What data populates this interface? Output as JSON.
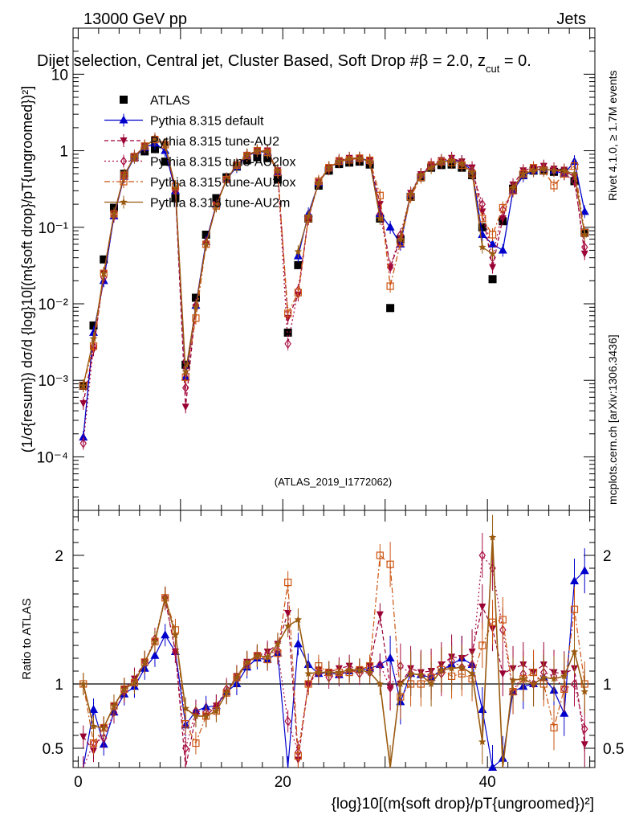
{
  "header": {
    "left": "13000 GeV pp",
    "right": "Jets",
    "title": "Dijet selection, Central jet, Cluster Based, Soft Drop #β = 2.0, z",
    "title_sub": "cut",
    "title_tail": " = 0.",
    "watermark": "(ATLAS_2019_I1772062)",
    "side_top": "Rivet 4.1.0, ≥ 1.7M events",
    "side_bottom": "mcplots.cern.ch [arXiv:1306.3436]"
  },
  "colors": {
    "atlas": "#000000",
    "default": "#0000cc",
    "au2": "#990033",
    "au2lox": "#aa1144",
    "au2lox_sq": "#cc5511",
    "au2m": "#9a5a10"
  },
  "chart_data": [
    {
      "type": "line",
      "panel": "main",
      "ylabel": "(1/σ{resum}) dσ/d {log}10[(m{soft drop}/pT{ungroomed})²]",
      "yscale": "log",
      "xlim": [
        -0.5,
        50.5
      ],
      "ylim": [
        2e-05,
        40
      ],
      "y_ticks": [
        {
          "value": 0.0001,
          "label": "10⁻⁴"
        },
        {
          "value": 0.001,
          "label": "10⁻³"
        },
        {
          "value": 0.01,
          "label": "10⁻²"
        },
        {
          "value": 0.1,
          "label": "10⁻¹"
        },
        {
          "value": 1,
          "label": "1"
        },
        {
          "value": 10,
          "label": "10"
        }
      ],
      "x": [
        0.5,
        1.5,
        2.5,
        3.5,
        4.5,
        5.5,
        6.5,
        7.5,
        8.5,
        9.5,
        10.5,
        11.5,
        12.5,
        13.5,
        14.5,
        15.5,
        16.5,
        17.5,
        18.5,
        19.5,
        20.5,
        21.5,
        22.5,
        23.5,
        24.5,
        25.5,
        26.5,
        27.5,
        28.5,
        29.5,
        30.5,
        31.5,
        32.5,
        33.5,
        34.5,
        35.5,
        36.5,
        37.5,
        38.5,
        39.5,
        40.5,
        41.5,
        42.5,
        43.5,
        44.5,
        45.5,
        46.5,
        47.5,
        48.5,
        49.5
      ],
      "series": [
        {
          "name": "ATLAS",
          "marker": "square",
          "color": "#000000",
          "values": [
            0.00085,
            0.0052,
            0.038,
            0.18,
            0.5,
            0.82,
            0.98,
            1.05,
            0.72,
            0.24,
            0.0016,
            0.012,
            0.08,
            0.24,
            0.45,
            0.62,
            0.75,
            0.82,
            0.8,
            0.42,
            0.0042,
            0.032,
            0.13,
            0.35,
            0.55,
            0.67,
            0.7,
            0.72,
            0.66,
            0.13,
            0.0088,
            0.07,
            0.25,
            0.45,
            0.6,
            0.65,
            0.66,
            0.6,
            0.48,
            0.1,
            0.021,
            0.12,
            0.32,
            0.48,
            0.55,
            0.55,
            0.53,
            0.52,
            0.4,
            0.085
          ]
        },
        {
          "name": "Pythia 8.315 default",
          "marker": "triangle-up",
          "color": "#0000cc",
          "values": [
            0.00018,
            0.0042,
            0.02,
            0.14,
            0.46,
            0.82,
            1.1,
            1.25,
            1.0,
            0.3,
            0.0011,
            0.0095,
            0.065,
            0.2,
            0.42,
            0.62,
            0.85,
            0.98,
            0.95,
            0.52,
            0.0,
            0.042,
            0.15,
            0.38,
            0.6,
            0.72,
            0.78,
            0.8,
            0.74,
            0.15,
            0.1,
            0.06,
            0.27,
            0.48,
            0.63,
            0.72,
            0.76,
            0.72,
            0.55,
            0.08,
            0.06,
            0.05,
            0.3,
            0.47,
            0.55,
            0.58,
            0.55,
            0.5,
            0.72,
            0.16
          ]
        },
        {
          "name": "Pythia 8.315 tune-AU2",
          "marker": "triangle-down",
          "color": "#990033",
          "values": [
            0.0005,
            0.0025,
            0.025,
            0.15,
            0.48,
            0.85,
            1.15,
            1.4,
            1.2,
            0.3,
            0.00045,
            0.009,
            0.06,
            0.2,
            0.42,
            0.66,
            0.88,
            1.0,
            1.0,
            0.55,
            0.0065,
            0.013,
            0.13,
            0.39,
            0.6,
            0.75,
            0.8,
            0.8,
            0.75,
            0.2,
            0.03,
            0.07,
            0.28,
            0.49,
            0.66,
            0.75,
            0.8,
            0.72,
            0.6,
            0.16,
            0.03,
            0.13,
            0.36,
            0.55,
            0.6,
            0.63,
            0.58,
            0.56,
            0.45,
            0.045
          ]
        },
        {
          "name": "Pythia 8.315 tune-AU2lox",
          "marker": "diamond",
          "color": "#aa1144",
          "values": [
            0.00015,
            0.0028,
            0.022,
            0.14,
            0.47,
            0.84,
            1.15,
            1.42,
            1.2,
            0.3,
            0.0008,
            0.0095,
            0.062,
            0.2,
            0.43,
            0.65,
            0.87,
            1.0,
            0.98,
            0.53,
            0.003,
            0.015,
            0.13,
            0.38,
            0.58,
            0.72,
            0.78,
            0.78,
            0.72,
            0.15,
            0.03,
            0.08,
            0.27,
            0.48,
            0.64,
            0.7,
            0.78,
            0.68,
            0.55,
            0.2,
            0.04,
            0.17,
            0.3,
            0.52,
            0.55,
            0.6,
            0.56,
            0.5,
            0.4,
            0.055
          ]
        },
        {
          "name": "Pythia 8.315 tune-AU2lox",
          "marker": "open-square",
          "color": "#cc5511",
          "values": [
            0.00085,
            0.0028,
            0.025,
            0.15,
            0.48,
            0.83,
            1.15,
            1.4,
            1.2,
            0.34,
            0.0011,
            0.0065,
            0.06,
            0.19,
            0.42,
            0.65,
            0.86,
            1.0,
            0.95,
            0.52,
            0.0075,
            0.014,
            0.13,
            0.4,
            0.6,
            0.73,
            0.76,
            0.8,
            0.75,
            0.26,
            0.017,
            0.063,
            0.25,
            0.45,
            0.63,
            0.72,
            0.7,
            0.65,
            0.5,
            0.13,
            0.08,
            0.18,
            0.3,
            0.5,
            0.6,
            0.55,
            0.35,
            0.5,
            0.63,
            0.085
          ]
        },
        {
          "name": "Pythia 8.315 tune-AU2m",
          "marker": "star",
          "color": "#9a5a10",
          "values": [
            0.00085,
            0.0035,
            0.025,
            0.15,
            0.48,
            0.83,
            1.15,
            1.4,
            1.2,
            0.33,
            0.0013,
            0.009,
            0.06,
            0.19,
            0.42,
            0.65,
            0.88,
            1.0,
            0.97,
            0.55,
            0.0,
            0.048,
            0.14,
            0.38,
            0.6,
            0.73,
            0.78,
            0.8,
            0.72,
            0.13,
            0.0,
            0.07,
            0.27,
            0.48,
            0.6,
            0.72,
            0.74,
            0.68,
            0.52,
            0.055,
            0.045,
            0.0,
            0.33,
            0.5,
            0.55,
            0.58,
            0.55,
            0.55,
            0.5,
            0.08
          ]
        }
      ]
    },
    {
      "type": "line",
      "panel": "ratio",
      "ylabel": "Ratio to ATLAS",
      "xlabel": "{log}10[(m{soft drop}/pT{ungroomed})²]",
      "xlim": [
        -0.5,
        50.5
      ],
      "ylim": [
        0.35,
        2.35
      ],
      "x_ticks": [
        0,
        20,
        40
      ],
      "y_ticks": [
        0.5,
        1,
        2
      ],
      "reference": 1,
      "series": [
        {
          "name": "Pythia 8.315 default",
          "color": "#0000cc",
          "marker": "triangle-up",
          "values": [
            0.2,
            0.8,
            0.53,
            0.78,
            0.92,
            0.98,
            1.12,
            1.22,
            1.38,
            1.25,
            0.68,
            0.79,
            0.82,
            0.83,
            0.94,
            1.0,
            1.13,
            1.2,
            1.19,
            1.24,
            0.0,
            1.31,
            1.15,
            1.08,
            1.09,
            1.07,
            1.1,
            1.11,
            1.12,
            1.15,
            1.2,
            0.86,
            1.08,
            1.07,
            1.05,
            1.11,
            1.15,
            1.2,
            1.15,
            0.8,
            0.35,
            0.42,
            0.94,
            0.98,
            1.0,
            1.05,
            0.95,
            0.77,
            1.8,
            1.88
          ]
        },
        {
          "name": "Pythia 8.315 tune-AU2",
          "color": "#990033",
          "marker": "triangle-down",
          "values": [
            0.59,
            0.48,
            0.66,
            0.83,
            0.96,
            1.04,
            1.17,
            1.33,
            1.66,
            1.25,
            0.28,
            0.75,
            0.75,
            0.83,
            0.93,
            1.06,
            1.17,
            1.22,
            1.25,
            1.31,
            1.55,
            0.41,
            1.0,
            1.11,
            1.09,
            1.12,
            1.14,
            1.11,
            1.14,
            1.54,
            0.97,
            1.0,
            1.12,
            1.09,
            1.1,
            1.15,
            1.21,
            1.2,
            1.25,
            1.6,
            1.43,
            1.08,
            1.12,
            1.15,
            1.09,
            1.15,
            1.09,
            1.08,
            1.12,
            0.53
          ]
        },
        {
          "name": "Pythia 8.315 tune-AU2lox",
          "color": "#aa1144",
          "marker": "diamond",
          "values": [
            0.18,
            0.54,
            0.58,
            0.78,
            0.94,
            1.02,
            1.17,
            1.35,
            1.67,
            1.25,
            0.5,
            0.79,
            0.78,
            0.83,
            0.96,
            1.05,
            1.16,
            1.22,
            1.23,
            1.26,
            0.71,
            0.47,
            1.0,
            1.09,
            1.05,
            1.07,
            1.11,
            1.08,
            1.09,
            1.15,
            0.97,
            1.14,
            1.08,
            1.07,
            1.07,
            1.08,
            1.18,
            1.13,
            1.15,
            2.0,
            1.9,
            1.42,
            0.94,
            1.08,
            1.0,
            1.09,
            1.06,
            0.96,
            1.0,
            0.65
          ]
        },
        {
          "name": "Pythia 8.315 tune-AU2lox",
          "color": "#cc5511",
          "marker": "open-square",
          "values": [
            1.0,
            0.54,
            0.66,
            0.83,
            0.96,
            1.01,
            1.17,
            1.33,
            1.67,
            1.42,
            0.69,
            0.54,
            0.75,
            0.79,
            0.93,
            1.05,
            1.15,
            1.22,
            1.19,
            1.24,
            1.79,
            0.44,
            1.0,
            1.14,
            1.09,
            1.09,
            1.09,
            1.11,
            1.14,
            2.0,
            1.93,
            0.9,
            1.0,
            1.0,
            1.05,
            1.11,
            1.06,
            1.08,
            1.04,
            1.3,
            1.48,
            1.5,
            0.94,
            1.04,
            1.09,
            1.0,
            0.66,
            0.96,
            1.58,
            1.0
          ]
        },
        {
          "name": "Pythia 8.315 tune-AU2m",
          "color": "#9a5a10",
          "marker": "star",
          "values": [
            1.0,
            0.67,
            0.66,
            0.83,
            0.96,
            1.01,
            1.17,
            1.33,
            1.67,
            1.38,
            0.81,
            0.75,
            0.75,
            0.79,
            0.93,
            1.05,
            1.17,
            1.22,
            1.21,
            1.31,
            1.45,
            1.5,
            1.08,
            1.09,
            1.09,
            1.09,
            1.11,
            1.11,
            1.09,
            1.0,
            0.0,
            1.0,
            1.08,
            1.07,
            1.0,
            1.11,
            1.12,
            1.13,
            1.08,
            0.55,
            2.14,
            0.0,
            1.03,
            1.04,
            1.0,
            1.05,
            1.04,
            1.06,
            1.25,
            0.94
          ]
        }
      ]
    }
  ]
}
